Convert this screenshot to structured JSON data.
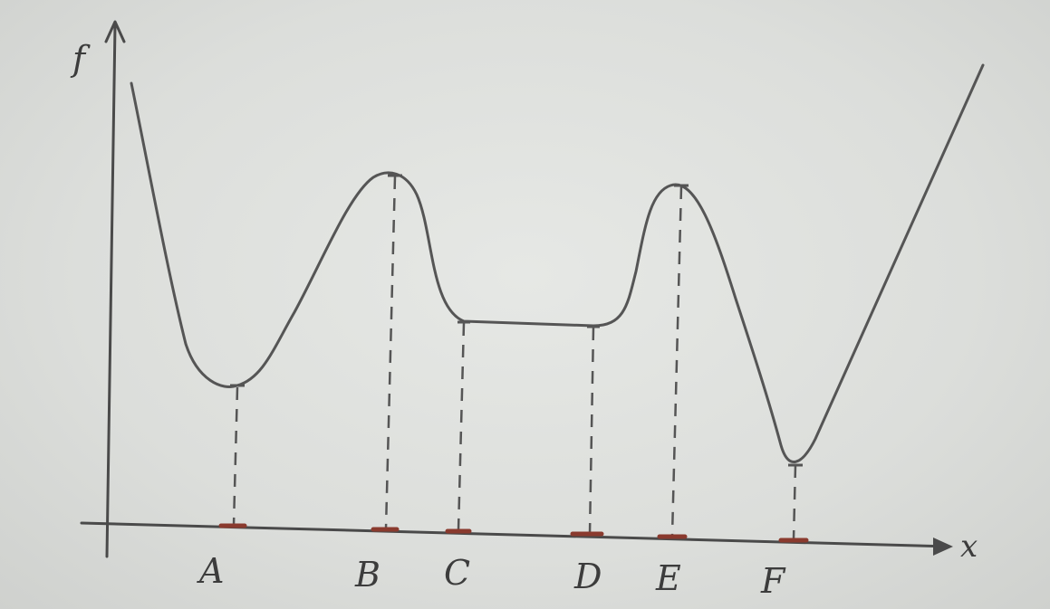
{
  "axes": {
    "y_label": "f",
    "x_label": "x"
  },
  "points": [
    {
      "id": "A",
      "label": "A",
      "kind": "local minimum"
    },
    {
      "id": "B",
      "label": "B",
      "kind": "local maximum"
    },
    {
      "id": "C",
      "label": "C",
      "kind": "start of flat segment"
    },
    {
      "id": "D",
      "label": "D",
      "kind": "end of flat segment"
    },
    {
      "id": "E",
      "label": "E",
      "kind": "local maximum"
    },
    {
      "id": "F",
      "label": "F",
      "kind": "local minimum"
    }
  ],
  "style": {
    "line_color": "#555555",
    "tick_color": "#8a3a2e",
    "background": "#dcdedb"
  }
}
